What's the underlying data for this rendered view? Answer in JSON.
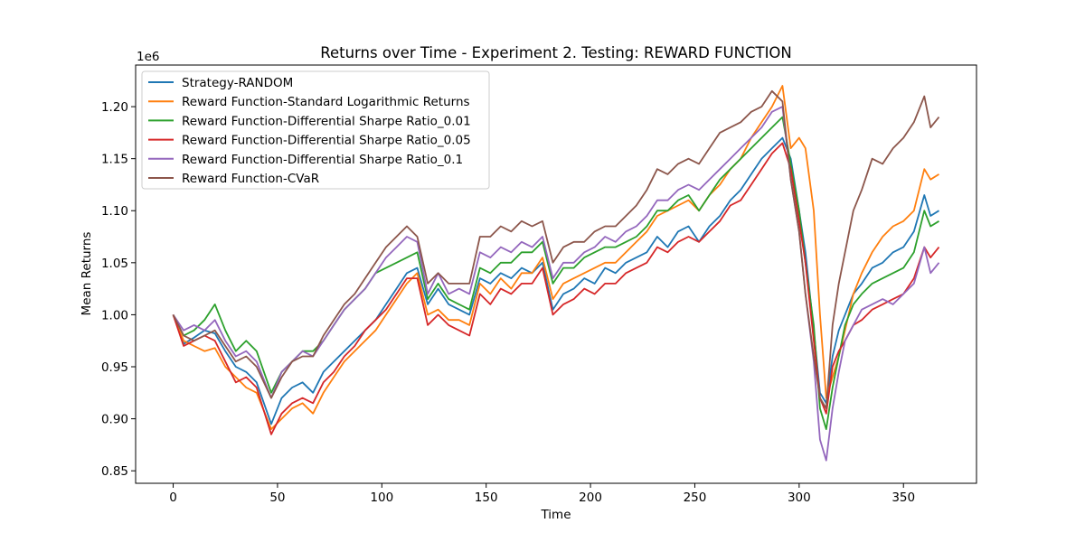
{
  "chart_data": {
    "type": "line",
    "title": "Returns over Time - Experiment 2. Testing: REWARD FUNCTION",
    "xlabel": "Time",
    "ylabel": "Mean Returns",
    "y_offset_label": "1e6",
    "xlim": [
      -18,
      385
    ],
    "ylim": [
      0.838,
      1.24
    ],
    "x_ticks": [
      0,
      50,
      100,
      150,
      200,
      250,
      300,
      350
    ],
    "y_ticks": [
      0.85,
      0.9,
      0.95,
      1.0,
      1.05,
      1.1,
      1.15,
      1.2
    ],
    "y_tick_labels": [
      "0.85",
      "0.90",
      "0.95",
      "1.00",
      "1.05",
      "1.10",
      "1.15",
      "1.20"
    ],
    "grid": false,
    "legend_position": "top-left",
    "x": [
      0,
      5,
      10,
      15,
      20,
      25,
      30,
      35,
      40,
      47,
      52,
      57,
      62,
      67,
      72,
      77,
      82,
      87,
      92,
      97,
      102,
      107,
      112,
      117,
      122,
      127,
      132,
      137,
      142,
      147,
      152,
      157,
      162,
      167,
      172,
      177,
      182,
      187,
      192,
      197,
      202,
      207,
      212,
      217,
      222,
      227,
      232,
      237,
      242,
      247,
      252,
      257,
      262,
      267,
      272,
      277,
      282,
      287,
      292,
      296,
      300,
      303,
      307,
      310,
      313,
      316,
      319,
      322,
      326,
      330,
      335,
      340,
      345,
      350,
      355,
      360,
      363,
      367
    ],
    "series": [
      {
        "name": "Strategy-RANDOM",
        "color": "#1f77b4",
        "values": [
          1.0,
          0.972,
          0.978,
          0.985,
          0.982,
          0.965,
          0.95,
          0.945,
          0.935,
          0.895,
          0.92,
          0.93,
          0.935,
          0.925,
          0.945,
          0.955,
          0.965,
          0.975,
          0.985,
          0.995,
          1.01,
          1.025,
          1.04,
          1.045,
          1.01,
          1.025,
          1.01,
          1.005,
          1.0,
          1.035,
          1.03,
          1.04,
          1.035,
          1.045,
          1.04,
          1.05,
          1.005,
          1.02,
          1.025,
          1.035,
          1.03,
          1.045,
          1.04,
          1.05,
          1.055,
          1.06,
          1.075,
          1.065,
          1.08,
          1.085,
          1.07,
          1.085,
          1.095,
          1.11,
          1.12,
          1.135,
          1.15,
          1.16,
          1.17,
          1.15,
          1.1,
          1.06,
          0.985,
          0.925,
          0.915,
          0.96,
          0.985,
          1.0,
          1.02,
          1.03,
          1.045,
          1.05,
          1.06,
          1.065,
          1.08,
          1.115,
          1.095,
          1.1
        ]
      },
      {
        "name": "Reward Function-Standard Logarithmic Returns",
        "color": "#ff7f0e",
        "values": [
          1.0,
          0.975,
          0.97,
          0.965,
          0.968,
          0.95,
          0.94,
          0.93,
          0.925,
          0.89,
          0.9,
          0.91,
          0.915,
          0.905,
          0.925,
          0.94,
          0.955,
          0.965,
          0.975,
          0.985,
          1.0,
          1.015,
          1.03,
          1.04,
          1.0,
          1.005,
          0.995,
          0.995,
          0.99,
          1.03,
          1.02,
          1.035,
          1.025,
          1.04,
          1.04,
          1.055,
          1.015,
          1.03,
          1.035,
          1.04,
          1.045,
          1.05,
          1.05,
          1.06,
          1.07,
          1.08,
          1.095,
          1.1,
          1.105,
          1.11,
          1.1,
          1.115,
          1.125,
          1.14,
          1.15,
          1.17,
          1.185,
          1.2,
          1.22,
          1.16,
          1.17,
          1.16,
          1.1,
          1.0,
          0.92,
          0.94,
          0.96,
          0.985,
          1.02,
          1.04,
          1.06,
          1.075,
          1.085,
          1.09,
          1.1,
          1.14,
          1.13,
          1.135
        ]
      },
      {
        "name": "Reward Function-Differential Sharpe Ratio_0.01",
        "color": "#2ca02c",
        "values": [
          1.0,
          0.98,
          0.985,
          0.995,
          1.01,
          0.985,
          0.965,
          0.975,
          0.965,
          0.925,
          0.945,
          0.955,
          0.965,
          0.965,
          0.975,
          0.99,
          1.005,
          1.015,
          1.025,
          1.04,
          1.045,
          1.05,
          1.055,
          1.06,
          1.015,
          1.03,
          1.015,
          1.01,
          1.005,
          1.045,
          1.04,
          1.05,
          1.05,
          1.06,
          1.06,
          1.07,
          1.03,
          1.045,
          1.045,
          1.055,
          1.06,
          1.065,
          1.065,
          1.07,
          1.075,
          1.085,
          1.1,
          1.1,
          1.11,
          1.115,
          1.1,
          1.115,
          1.13,
          1.14,
          1.15,
          1.16,
          1.17,
          1.18,
          1.19,
          1.145,
          1.1,
          1.05,
          0.99,
          0.91,
          0.89,
          0.93,
          0.96,
          0.99,
          1.01,
          1.02,
          1.03,
          1.035,
          1.04,
          1.045,
          1.06,
          1.1,
          1.085,
          1.09
        ]
      },
      {
        "name": "Reward Function-Differential Sharpe Ratio_0.05",
        "color": "#d62728",
        "values": [
          1.0,
          0.97,
          0.975,
          0.98,
          0.975,
          0.955,
          0.935,
          0.94,
          0.93,
          0.885,
          0.905,
          0.915,
          0.92,
          0.915,
          0.935,
          0.945,
          0.96,
          0.97,
          0.985,
          0.995,
          1.005,
          1.02,
          1.035,
          1.035,
          0.99,
          1.0,
          0.99,
          0.985,
          0.98,
          1.02,
          1.01,
          1.025,
          1.02,
          1.03,
          1.03,
          1.045,
          1.0,
          1.01,
          1.015,
          1.025,
          1.02,
          1.03,
          1.03,
          1.04,
          1.045,
          1.05,
          1.065,
          1.06,
          1.07,
          1.075,
          1.07,
          1.08,
          1.09,
          1.105,
          1.11,
          1.125,
          1.14,
          1.155,
          1.165,
          1.14,
          1.09,
          1.05,
          0.975,
          0.92,
          0.905,
          0.95,
          0.965,
          0.975,
          0.99,
          0.995,
          1.005,
          1.01,
          1.015,
          1.02,
          1.035,
          1.065,
          1.055,
          1.065
        ]
      },
      {
        "name": "Reward Function-Differential Sharpe Ratio_0.1",
        "color": "#9467bd",
        "values": [
          1.0,
          0.985,
          0.99,
          0.985,
          0.995,
          0.975,
          0.96,
          0.965,
          0.955,
          0.92,
          0.945,
          0.955,
          0.965,
          0.96,
          0.975,
          0.99,
          1.005,
          1.015,
          1.025,
          1.04,
          1.055,
          1.065,
          1.075,
          1.07,
          1.02,
          1.04,
          1.02,
          1.025,
          1.02,
          1.06,
          1.055,
          1.065,
          1.06,
          1.07,
          1.065,
          1.075,
          1.035,
          1.05,
          1.05,
          1.06,
          1.065,
          1.075,
          1.07,
          1.08,
          1.085,
          1.095,
          1.11,
          1.11,
          1.12,
          1.125,
          1.12,
          1.13,
          1.14,
          1.15,
          1.16,
          1.17,
          1.18,
          1.195,
          1.2,
          1.13,
          1.08,
          1.02,
          0.955,
          0.88,
          0.86,
          0.91,
          0.945,
          0.975,
          0.99,
          1.005,
          1.01,
          1.015,
          1.01,
          1.02,
          1.03,
          1.065,
          1.04,
          1.05
        ]
      },
      {
        "name": "Reward Function-CVaR",
        "color": "#8c564b",
        "values": [
          1.0,
          0.98,
          0.975,
          0.98,
          0.985,
          0.97,
          0.955,
          0.96,
          0.95,
          0.92,
          0.94,
          0.955,
          0.96,
          0.96,
          0.98,
          0.995,
          1.01,
          1.02,
          1.035,
          1.05,
          1.065,
          1.075,
          1.085,
          1.075,
          1.03,
          1.04,
          1.03,
          1.03,
          1.03,
          1.075,
          1.075,
          1.085,
          1.08,
          1.09,
          1.085,
          1.09,
          1.05,
          1.065,
          1.07,
          1.07,
          1.08,
          1.085,
          1.085,
          1.095,
          1.105,
          1.12,
          1.14,
          1.135,
          1.145,
          1.15,
          1.145,
          1.16,
          1.175,
          1.18,
          1.185,
          1.195,
          1.2,
          1.215,
          1.205,
          1.13,
          1.08,
          1.02,
          0.96,
          0.92,
          0.91,
          0.99,
          1.03,
          1.06,
          1.1,
          1.12,
          1.15,
          1.145,
          1.16,
          1.17,
          1.185,
          1.21,
          1.18,
          1.19
        ]
      }
    ]
  }
}
